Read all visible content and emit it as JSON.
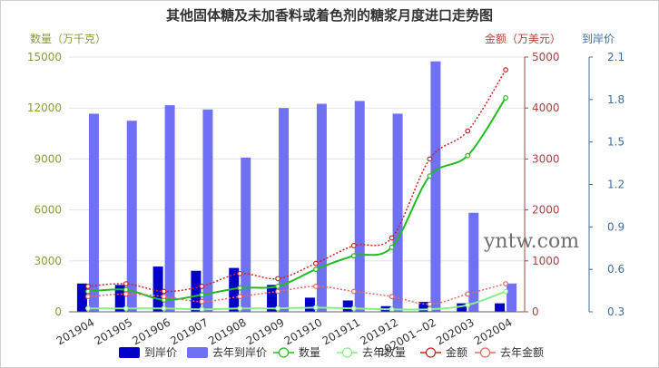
{
  "chart_data": {
    "type": "bar",
    "title": "其他固体糖及未加香料或着色剂的糖浆月度进口走势图",
    "categories": [
      "201904",
      "201905",
      "201906",
      "201907",
      "201908",
      "201909",
      "201910",
      "201911",
      "201912",
      "202001~02",
      "202003",
      "202004"
    ],
    "axes": {
      "left": {
        "name": "数量（万千克）",
        "min": 0,
        "max": 15000,
        "ticks": [
          0,
          3000,
          6000,
          9000,
          12000,
          15000
        ],
        "color": "#8b9a3c"
      },
      "right1": {
        "name": "金额（万美元）",
        "min": 0,
        "max": 5000,
        "ticks": [
          0,
          1000,
          2000,
          3000,
          4000,
          5000
        ],
        "color": "#b0413e"
      },
      "right2": {
        "name": "到岸价",
        "min": 0.3,
        "max": 2.1,
        "ticks": [
          "0.3",
          "0.6",
          "0.9",
          "1.2",
          "1.5",
          "1.8",
          "2.1"
        ],
        "color": "#3c6e9f"
      }
    },
    "series": [
      {
        "name": "到岸价",
        "type": "bar",
        "axis": "right2",
        "color": "#0000c8",
        "values": [
          0.5,
          0.49,
          0.62,
          0.59,
          0.61,
          0.49,
          0.4,
          0.38,
          0.34,
          0.37,
          0.36,
          0.36
        ]
      },
      {
        "name": "去年到岸价",
        "type": "bar",
        "axis": "right2",
        "color": "#7070f5",
        "values": [
          1.7,
          1.65,
          1.76,
          1.73,
          1.39,
          1.74,
          1.77,
          1.79,
          1.7,
          2.07,
          1.0,
          0.5
        ]
      },
      {
        "name": "数量",
        "type": "line",
        "axis": "left",
        "color": "#22bb22",
        "dashed": false,
        "values": [
          1200,
          1300,
          700,
          1000,
          1400,
          1500,
          2500,
          3300,
          3800,
          8000,
          9200,
          12600
        ]
      },
      {
        "name": "去年数量",
        "type": "line",
        "axis": "left",
        "color": "#88ee88",
        "dashed": false,
        "values": [
          200,
          200,
          200,
          150,
          200,
          200,
          250,
          200,
          150,
          150,
          400,
          1200
        ]
      },
      {
        "name": "金额",
        "type": "line",
        "axis": "right1",
        "color": "#cc2222",
        "dashed": true,
        "values": [
          500,
          550,
          400,
          500,
          750,
          650,
          950,
          1300,
          1450,
          3000,
          3550,
          4750
        ]
      },
      {
        "name": "去年金额",
        "type": "line",
        "axis": "right1",
        "color": "#ee6666",
        "dashed": true,
        "values": [
          300,
          350,
          300,
          200,
          300,
          400,
          500,
          400,
          300,
          150,
          350,
          550
        ]
      }
    ],
    "legend": "bottom",
    "grid": true
  },
  "watermark": "yntw.com"
}
